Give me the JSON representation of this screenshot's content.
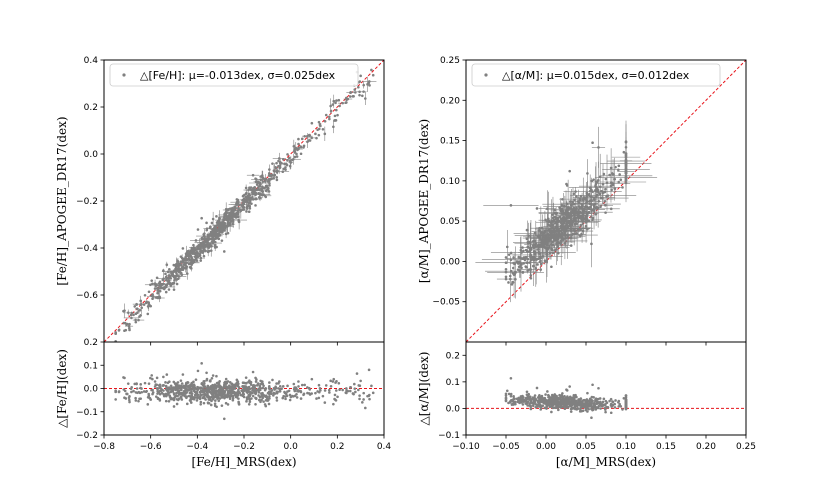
{
  "chart_data": [
    {
      "panel": "left-main",
      "type": "scatter",
      "xlabel": "",
      "ylabel": "[Fe/H]_APOGEE_DR17(dex)",
      "xlim": [
        -0.8,
        0.4
      ],
      "ylim": [
        -0.8,
        0.4
      ],
      "xticks": [
        -0.8,
        -0.6,
        -0.4,
        -0.2,
        0.0,
        0.2,
        0.4
      ],
      "xtick_labels": [
        "",
        "",
        "",
        "",
        "",
        "",
        ""
      ],
      "yticks": [
        -0.6,
        -0.4,
        -0.2,
        0.0,
        0.2,
        0.4
      ],
      "ytick_labels": [
        "−0.6",
        "−0.4",
        "−0.2",
        "0.0",
        "0.2",
        "0.4"
      ],
      "legend": {
        "label": "△[Fe/H]: μ=-0.013dex, σ=0.025dex",
        "location": "upper-left",
        "marker_color": "#808080"
      },
      "reference_line": {
        "type": "one-to-one",
        "color": "#e8141b"
      },
      "series": [
        {
          "name": "stars",
          "color": "#808080",
          "n_points": 900,
          "relation": "y ≈ x",
          "offset": -0.013,
          "scatter": 0.025,
          "x_range": [
            -0.75,
            0.37
          ]
        }
      ]
    },
    {
      "panel": "left-residual",
      "type": "scatter",
      "xlabel": "[Fe/H]_MRS(dex)",
      "ylabel": "△[Fe/H](dex)",
      "xlim": [
        -0.8,
        0.4
      ],
      "ylim": [
        -0.2,
        0.2
      ],
      "xticks": [
        -0.8,
        -0.6,
        -0.4,
        -0.2,
        0.0,
        0.2,
        0.4
      ],
      "xtick_labels": [
        "−0.8",
        "−0.6",
        "−0.4",
        "−0.2",
        "0.0",
        "0.2",
        "0.4"
      ],
      "yticks": [
        -0.2,
        -0.1,
        0.0,
        0.1,
        0.2
      ],
      "ytick_labels": [
        "−0.2",
        "−0.1",
        "0.0",
        "0.1",
        "0.2"
      ],
      "reference_line": {
        "type": "zero",
        "color": "#e8141b"
      },
      "series": [
        {
          "name": "residuals",
          "color": "#808080",
          "n_points": 900,
          "mean": -0.013,
          "scatter": 0.025
        }
      ]
    },
    {
      "panel": "right-main",
      "type": "scatter",
      "xlabel": "",
      "ylabel": "[α/M]_APOGEE_DR17(dex)",
      "xlim": [
        -0.1,
        0.25
      ],
      "ylim": [
        -0.1,
        0.25
      ],
      "xticks": [
        -0.1,
        -0.05,
        0.0,
        0.05,
        0.1,
        0.15,
        0.2,
        0.25
      ],
      "xtick_labels": [
        "",
        "",
        "",
        "",
        "",
        "",
        "",
        ""
      ],
      "yticks": [
        -0.05,
        0.0,
        0.05,
        0.1,
        0.15,
        0.2,
        0.25
      ],
      "ytick_labels": [
        "−0.05",
        "0.00",
        "0.05",
        "0.10",
        "0.15",
        "0.20",
        "0.25"
      ],
      "legend": {
        "label": "△[α/M]: μ=0.015dex, σ=0.012dex",
        "location": "upper-left",
        "marker_color": "#808080"
      },
      "reference_line": {
        "type": "one-to-one",
        "color": "#e8141b"
      },
      "series": [
        {
          "name": "stars",
          "color": "#808080",
          "n_points": 700,
          "relation": "y ≈ x + 0.015",
          "offset": 0.015,
          "scatter": 0.012,
          "x_range": [
            -0.05,
            0.1
          ]
        }
      ]
    },
    {
      "panel": "right-residual",
      "type": "scatter",
      "xlabel": "[α/M]_MRS(dex)",
      "ylabel": "△[α/M](dex)",
      "xlim": [
        -0.1,
        0.25
      ],
      "ylim": [
        -0.1,
        0.25
      ],
      "xticks": [
        -0.1,
        -0.05,
        0.0,
        0.05,
        0.1,
        0.15,
        0.2,
        0.25
      ],
      "xtick_labels": [
        "−0.10",
        "−0.05",
        "0.00",
        "0.05",
        "0.10",
        "0.15",
        "0.20",
        "0.25"
      ],
      "yticks": [
        -0.1,
        0.0,
        0.1,
        0.2
      ],
      "ytick_labels": [
        "−0.1",
        "0.0",
        "0.1",
        "0.2"
      ],
      "reference_line": {
        "type": "zero",
        "color": "#e8141b"
      },
      "series": [
        {
          "name": "residuals",
          "color": "#808080",
          "n_points": 700,
          "mean": 0.015,
          "scatter": 0.012
        }
      ]
    }
  ]
}
